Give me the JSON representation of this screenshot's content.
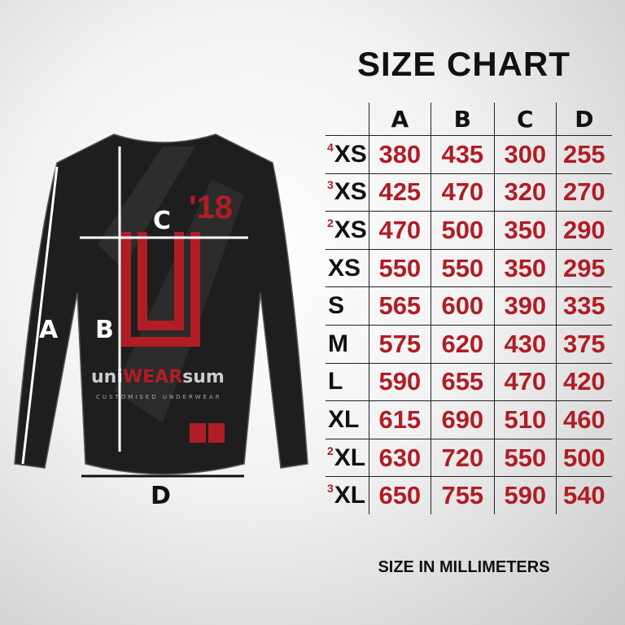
{
  "title": "SIZE CHART",
  "footer": "SIZE IN MILLIMETERS",
  "columns": [
    "",
    "A",
    "B",
    "C",
    "D"
  ],
  "rows": [
    {
      "prefix": "4",
      "size": "XS",
      "values": [
        "380",
        "435",
        "300",
        "255"
      ]
    },
    {
      "prefix": "3",
      "size": "XS",
      "values": [
        "425",
        "470",
        "320",
        "270"
      ]
    },
    {
      "prefix": "2",
      "size": "XS",
      "values": [
        "470",
        "500",
        "350",
        "290"
      ]
    },
    {
      "prefix": "",
      "size": "XS",
      "values": [
        "550",
        "550",
        "350",
        "295"
      ]
    },
    {
      "prefix": "",
      "size": "S",
      "values": [
        "565",
        "600",
        "390",
        "335"
      ]
    },
    {
      "prefix": "",
      "size": "M",
      "values": [
        "575",
        "620",
        "430",
        "375"
      ]
    },
    {
      "prefix": "",
      "size": "L",
      "values": [
        "590",
        "655",
        "470",
        "420"
      ]
    },
    {
      "prefix": "",
      "size": "XL",
      "values": [
        "615",
        "690",
        "510",
        "460"
      ]
    },
    {
      "prefix": "2",
      "size": "XL",
      "values": [
        "630",
        "720",
        "550",
        "500"
      ]
    },
    {
      "prefix": "3",
      "size": "XL",
      "values": [
        "650",
        "755",
        "590",
        "540"
      ]
    }
  ],
  "shirt": {
    "year": "'18",
    "brand_left": "uni",
    "brand_mid": "WEAR",
    "brand_right": "sum",
    "tagline": "CUSTOMISED UNDERWEAR",
    "labels": {
      "a": "A",
      "b": "B",
      "c": "C",
      "d": "D"
    }
  },
  "colors": {
    "accent": "#b01d24",
    "shirt": "#1e1e1e"
  }
}
